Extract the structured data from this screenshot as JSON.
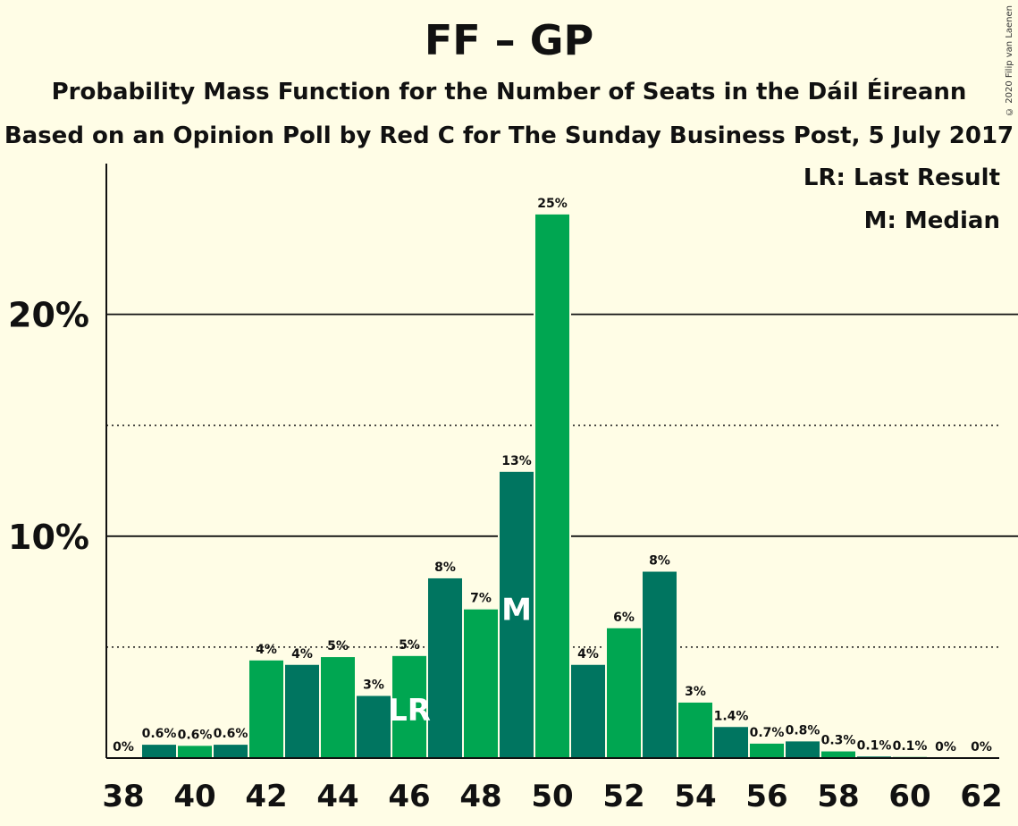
{
  "header": {
    "title": "FF – GP",
    "subtitle1": "Probability Mass Function for the Number of Seats in the Dáil Éireann",
    "subtitle2": "Based on an Opinion Poll by Red C for The Sunday Business Post, 5 July 2017",
    "copyright": "© 2020 Filip van Laenen"
  },
  "legend": {
    "last_result": "LR: Last Result",
    "median": "M: Median"
  },
  "colors": {
    "background": "#fffde6",
    "bar_light": "#00a651",
    "bar_dark": "#007560",
    "text": "#111111"
  },
  "chart_data": {
    "type": "bar",
    "title": "FF – GP",
    "xlabel": "",
    "ylabel": "",
    "x": [
      38,
      39,
      40,
      41,
      42,
      43,
      44,
      45,
      46,
      47,
      48,
      49,
      50,
      51,
      52,
      53,
      54,
      55,
      56,
      57,
      58,
      59,
      60,
      61,
      62
    ],
    "values": [
      0,
      0.6,
      0.55,
      0.6,
      4.4,
      4.2,
      4.55,
      2.8,
      4.6,
      8.1,
      6.7,
      12.9,
      24.5,
      4.2,
      5.85,
      8.4,
      2.5,
      1.4,
      0.65,
      0.75,
      0.3,
      0.07,
      0.05,
      0,
      0
    ],
    "data_labels": [
      "0%",
      "0.6%",
      "0.6%",
      "0.6%",
      "4%",
      "4%",
      "5%",
      "3%",
      "5%",
      "8%",
      "7%",
      "13%",
      "25%",
      "4%",
      "6%",
      "8%",
      "3%",
      "1.4%",
      "0.7%",
      "0.8%",
      "0.3%",
      "0.1%",
      "0.1%",
      "0%",
      "0%"
    ],
    "x_tick_labels": [
      "38",
      "40",
      "42",
      "44",
      "46",
      "48",
      "50",
      "52",
      "54",
      "56",
      "58",
      "60",
      "62"
    ],
    "y_tick_labels": [
      "10%",
      "20%"
    ],
    "ylim": [
      0,
      26.5
    ],
    "grid": {
      "solid": [
        10,
        20
      ],
      "dotted": [
        5,
        15
      ]
    },
    "last_result": {
      "x": 46,
      "label": "LR"
    },
    "median": {
      "x": 49,
      "label": "M"
    }
  }
}
